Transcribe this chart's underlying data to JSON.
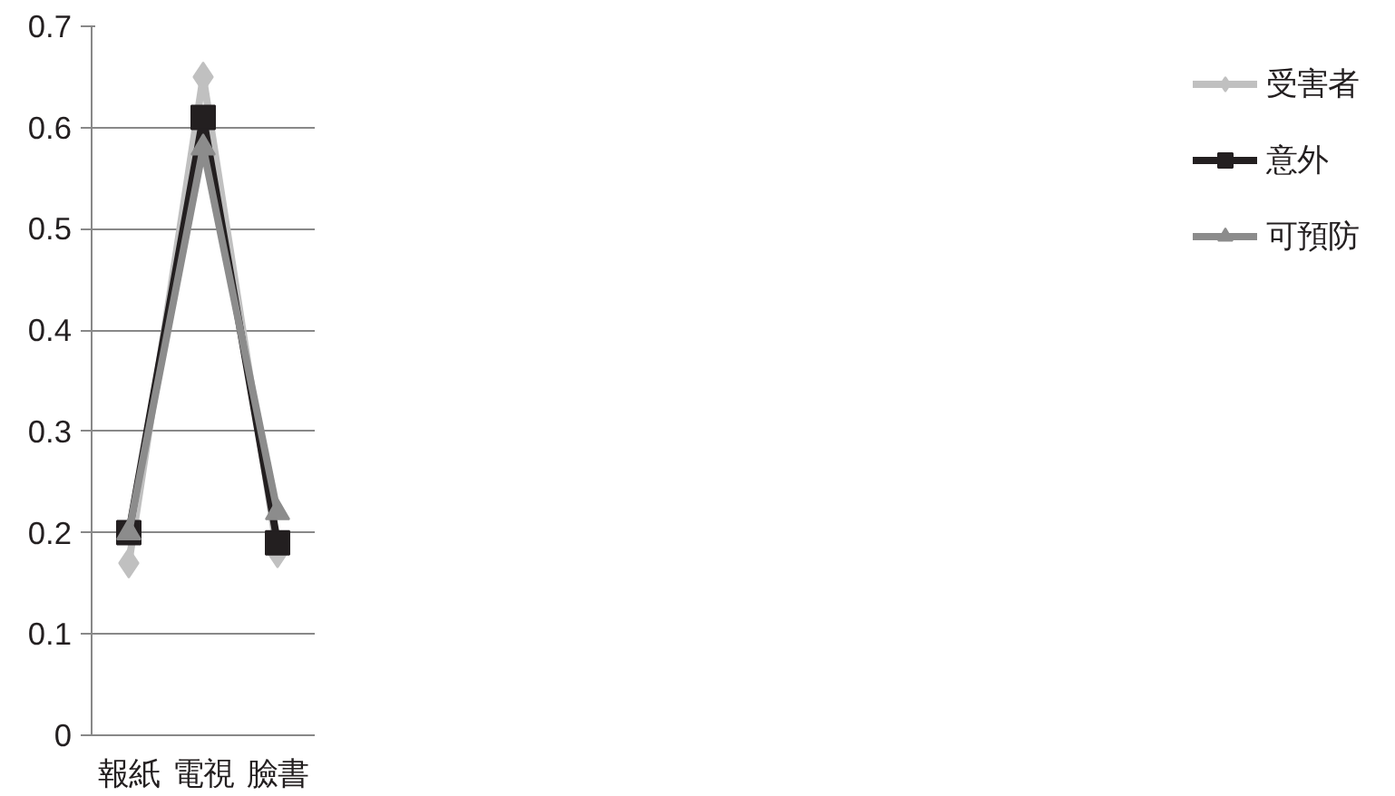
{
  "chart_data": {
    "type": "line",
    "categories": [
      "報紙",
      "電視",
      "臉書"
    ],
    "series": [
      {
        "name": "受害者",
        "color": "#c0c0c0",
        "marker": "diamond",
        "values": [
          0.17,
          0.65,
          0.18
        ]
      },
      {
        "name": "意外",
        "color": "#231f20",
        "marker": "square",
        "values": [
          0.2,
          0.61,
          0.19
        ]
      },
      {
        "name": "可預防",
        "color": "#8c8c8c",
        "marker": "triangle",
        "values": [
          0.2,
          0.58,
          0.22
        ]
      }
    ],
    "ylim": [
      0,
      0.7
    ],
    "yticks": [
      {
        "value": 0,
        "label": "0"
      },
      0.1,
      0.2,
      0.3,
      0.4,
      0.5,
      0.6,
      0.7
    ],
    "grid": "y",
    "legend": "right",
    "line_style": "solid"
  }
}
